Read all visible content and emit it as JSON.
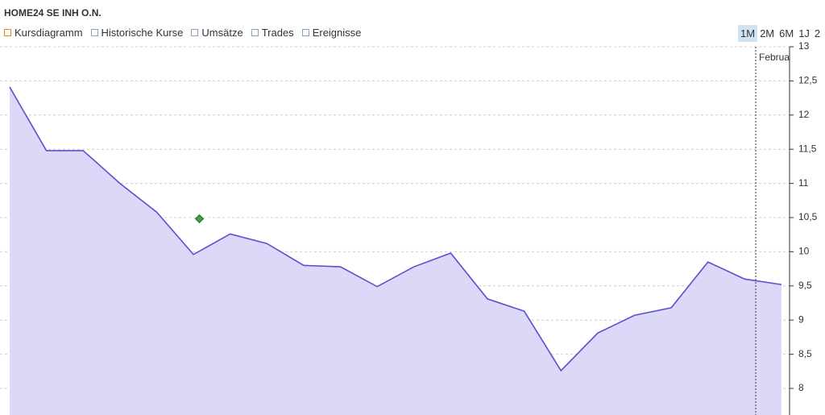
{
  "header": {
    "title": "HOME24 SE  INH O.N."
  },
  "tabs": [
    "Kursdiagramm",
    "Historische Kurse",
    "Umsätze",
    "Trades",
    "Ereignisse"
  ],
  "ranges": [
    "1M",
    "2M",
    "6M",
    "1J",
    "2"
  ],
  "selected_range": "1M",
  "chart_data": {
    "type": "area",
    "categories": [
      null,
      null,
      null,
      null,
      null,
      null,
      null,
      null,
      null,
      null,
      null,
      null,
      null,
      null,
      null,
      null,
      null,
      null,
      null,
      null,
      null,
      null
    ],
    "series": [
      {
        "color": "#5b4fd0",
        "fill": "#dcd8f8",
        "values": [
          12.41,
          11.48,
          11.48,
          11.0,
          10.58,
          9.96,
          10.26,
          10.12,
          9.8,
          9.78,
          9.49,
          9.78,
          9.98,
          9.31,
          9.13,
          8.26,
          8.81,
          9.07,
          9.18,
          9.85,
          9.6,
          9.52
        ]
      }
    ],
    "ylim": [
      7.65,
      13
    ],
    "yticks": [
      13,
      {
        "value": 12.5,
        "label": "12,5"
      },
      12,
      {
        "value": 11.5,
        "label": "11,5"
      },
      11,
      {
        "value": 10.5,
        "label": "10,5"
      },
      10,
      {
        "value": 9.5,
        "label": "9,5"
      },
      9,
      {
        "value": 8.5,
        "label": "8,5"
      },
      8
    ],
    "grid": true,
    "marker_label": "Februa"
  }
}
